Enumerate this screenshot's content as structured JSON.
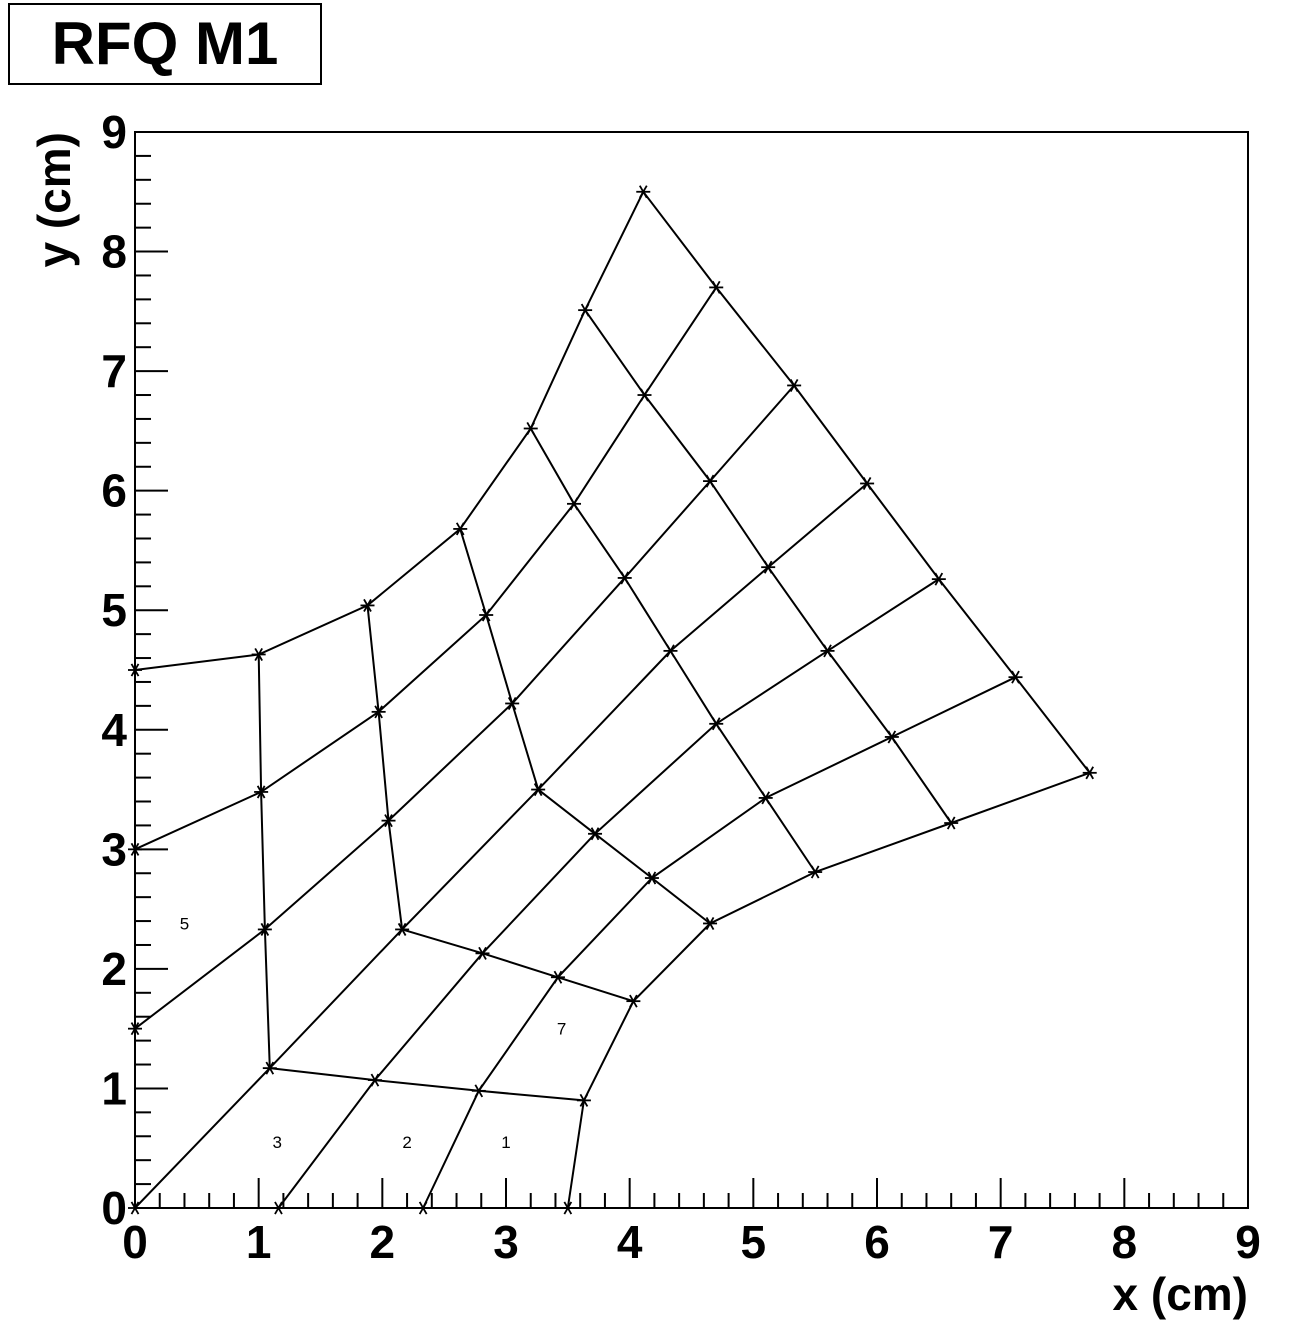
{
  "chart_data": {
    "type": "line",
    "title": "RFQ M1",
    "xlabel": "x (cm)",
    "ylabel": "y (cm)",
    "xlim": [
      0,
      9
    ],
    "ylim": [
      0,
      9
    ],
    "x_ticks": [
      "0",
      "1",
      "2",
      "3",
      "4",
      "5",
      "6",
      "7",
      "8",
      "9"
    ],
    "y_ticks": [
      "0",
      "1",
      "2",
      "3",
      "4",
      "5",
      "6",
      "7",
      "8",
      "9"
    ],
    "grid": false,
    "marker": "asterisk",
    "line_color": "#000000",
    "grid_lines": [
      [
        [
          0.0,
          4.5
        ],
        [
          1.0,
          4.63
        ],
        [
          1.88,
          5.04
        ],
        [
          2.63,
          5.68
        ],
        [
          3.2,
          6.52
        ],
        [
          3.64,
          7.51
        ],
        [
          4.11,
          8.5
        ]
      ],
      [
        [
          0.0,
          3.0
        ],
        [
          1.02,
          3.48
        ],
        [
          1.97,
          4.15
        ],
        [
          2.84,
          4.96
        ],
        [
          3.55,
          5.89
        ],
        [
          4.12,
          6.8
        ],
        [
          4.7,
          7.7
        ]
      ],
      [
        [
          0.0,
          1.5
        ],
        [
          1.05,
          2.33
        ],
        [
          2.05,
          3.24
        ],
        [
          3.05,
          4.22
        ],
        [
          3.96,
          5.27
        ],
        [
          4.65,
          6.08
        ],
        [
          5.33,
          6.88
        ]
      ],
      [
        [
          0.0,
          0.0
        ],
        [
          1.09,
          1.17
        ],
        [
          2.16,
          2.33
        ],
        [
          3.26,
          3.5
        ],
        [
          4.33,
          4.66
        ],
        [
          5.12,
          5.36
        ],
        [
          5.92,
          6.06
        ]
      ],
      [
        [
          1.16,
          0.0
        ],
        [
          1.94,
          1.07
        ],
        [
          2.81,
          2.13
        ],
        [
          3.72,
          3.13
        ],
        [
          4.7,
          4.05
        ],
        [
          5.6,
          4.66
        ],
        [
          6.5,
          5.26
        ]
      ],
      [
        [
          2.33,
          0.0
        ],
        [
          2.78,
          0.98
        ],
        [
          3.42,
          1.93
        ],
        [
          4.18,
          2.76
        ],
        [
          5.1,
          3.43
        ],
        [
          6.12,
          3.94
        ],
        [
          7.12,
          4.44
        ]
      ],
      [
        [
          3.5,
          0.0
        ],
        [
          3.63,
          0.9
        ],
        [
          4.03,
          1.73
        ],
        [
          4.65,
          2.38
        ],
        [
          5.5,
          2.81
        ],
        [
          6.6,
          3.22
        ],
        [
          7.72,
          3.64
        ]
      ],
      [
        [
          1.0,
          4.63
        ],
        [
          1.02,
          3.48
        ],
        [
          1.05,
          2.33
        ],
        [
          1.09,
          1.17
        ]
      ],
      [
        [
          1.88,
          5.04
        ],
        [
          1.97,
          4.15
        ],
        [
          2.05,
          3.24
        ],
        [
          2.16,
          2.33
        ]
      ],
      [
        [
          2.63,
          5.68
        ],
        [
          2.84,
          4.96
        ],
        [
          3.05,
          4.22
        ],
        [
          3.26,
          3.5
        ]
      ],
      [
        [
          2.16,
          2.33
        ],
        [
          2.81,
          2.13
        ],
        [
          3.42,
          1.93
        ],
        [
          4.03,
          1.73
        ]
      ],
      [
        [
          1.09,
          1.17
        ],
        [
          1.94,
          1.07
        ],
        [
          2.78,
          0.98
        ],
        [
          3.63,
          0.9
        ]
      ],
      [
        [
          3.26,
          3.5
        ],
        [
          3.72,
          3.13
        ],
        [
          4.18,
          2.76
        ],
        [
          4.65,
          2.38
        ]
      ],
      [
        [
          3.2,
          6.52
        ],
        [
          3.55,
          5.89
        ],
        [
          3.96,
          5.27
        ],
        [
          4.33,
          4.66
        ],
        [
          4.7,
          4.05
        ],
        [
          5.1,
          3.43
        ],
        [
          5.5,
          2.81
        ]
      ],
      [
        [
          3.64,
          7.51
        ],
        [
          4.12,
          6.8
        ],
        [
          4.65,
          6.08
        ],
        [
          5.12,
          5.36
        ],
        [
          5.6,
          4.66
        ],
        [
          6.12,
          3.94
        ],
        [
          6.6,
          3.22
        ]
      ],
      [
        [
          4.11,
          8.5
        ],
        [
          4.7,
          7.7
        ],
        [
          5.33,
          6.88
        ],
        [
          5.92,
          6.06
        ],
        [
          6.5,
          5.26
        ],
        [
          7.12,
          4.44
        ],
        [
          7.72,
          3.64
        ]
      ]
    ],
    "region_labels": [
      {
        "text": "5",
        "x": 0.4,
        "y": 2.38
      },
      {
        "text": "7",
        "x": 3.45,
        "y": 1.5
      },
      {
        "text": "3",
        "x": 1.15,
        "y": 0.55
      },
      {
        "text": "2",
        "x": 2.2,
        "y": 0.55
      },
      {
        "text": "1",
        "x": 3.0,
        "y": 0.55
      }
    ]
  }
}
